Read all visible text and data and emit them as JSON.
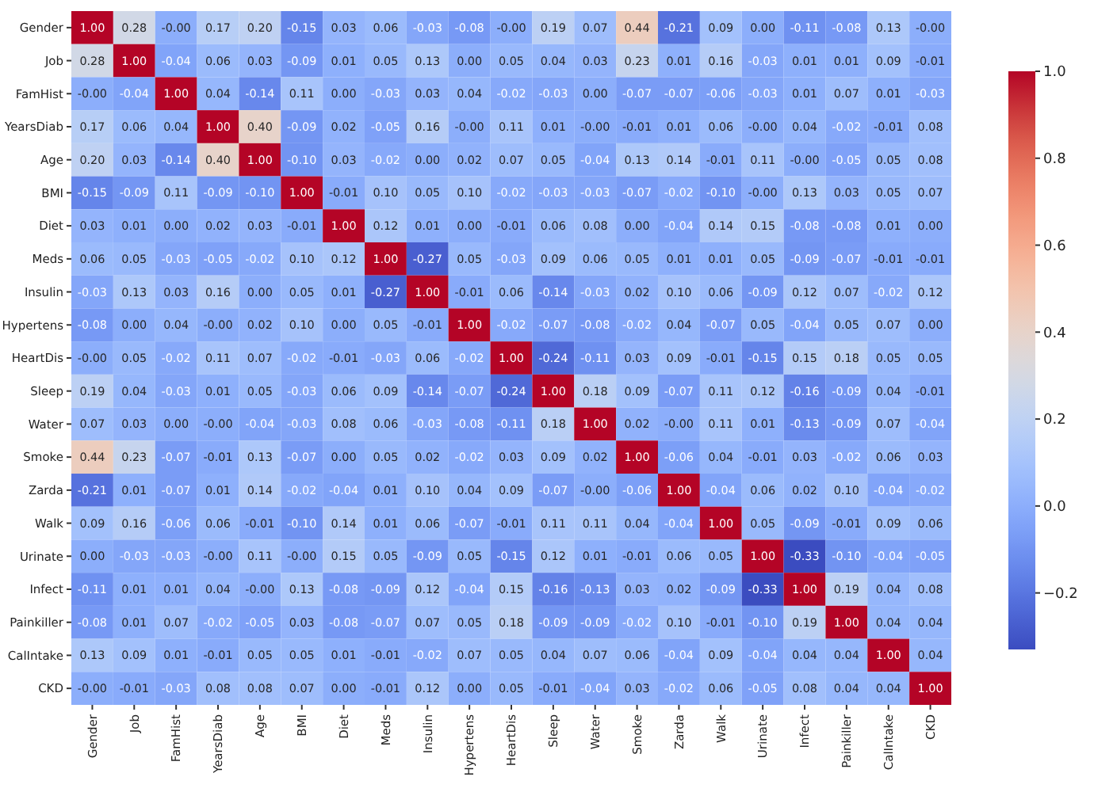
{
  "chart_data": {
    "type": "heatmap",
    "categories": [
      "Gender",
      "Job",
      "FamHist",
      "YearsDiab",
      "Age",
      "BMI",
      "Diet",
      "Meds",
      "Insulin",
      "Hypertens",
      "HeartDis",
      "Sleep",
      "Water",
      "Smoke",
      "Zarda",
      "Walk",
      "Urinate",
      "Infect",
      "Painkiller",
      "CalIntake",
      "CKD"
    ],
    "y_categories": [
      "Gender",
      "Job",
      "FamHist",
      "YearsDiab",
      "Age",
      "BMI",
      "Diet",
      "Meds",
      "Insulin",
      "Hypertens",
      "HeartDis",
      "Sleep",
      "Water",
      "Smoke",
      "Zarda",
      "Walk",
      "Urinate",
      "Infect",
      "Painkiller",
      "CalIntake",
      "CKD"
    ],
    "cells": [
      [
        1.0,
        0.28,
        0,
        0.17,
        0.2,
        -0.15,
        0.03,
        0.06,
        -0.03,
        -0.08,
        0,
        0.19,
        0.07,
        0.44,
        -0.21,
        0.09,
        0.0,
        -0.11,
        -0.08,
        0.13,
        0
      ],
      [
        0.28,
        1.0,
        -0.04,
        0.06,
        0.03,
        -0.09,
        0.01,
        0.05,
        0.13,
        0.0,
        0.05,
        0.04,
        0.03,
        0.23,
        0.01,
        0.16,
        -0.03,
        0.01,
        0.01,
        0.09,
        -0.01
      ],
      [
        0,
        -0.04,
        1.0,
        0.04,
        -0.14,
        0.11,
        0.0,
        -0.03,
        0.03,
        0.04,
        -0.02,
        -0.03,
        0.0,
        -0.07,
        -0.07,
        -0.06,
        -0.03,
        0.01,
        0.07,
        0.01,
        -0.03
      ],
      [
        0.17,
        0.06,
        0.04,
        1.0,
        0.4,
        -0.09,
        0.02,
        -0.05,
        0.16,
        0,
        0.11,
        0.01,
        0,
        -0.01,
        0.01,
        0.06,
        0,
        0.04,
        -0.02,
        -0.01,
        0.08
      ],
      [
        0.2,
        0.03,
        -0.14,
        0.4,
        1.0,
        -0.1,
        0.03,
        -0.02,
        0.0,
        0.02,
        0.07,
        0.05,
        -0.04,
        0.13,
        0.14,
        -0.01,
        0.11,
        0,
        -0.05,
        0.05,
        0.08
      ],
      [
        -0.15,
        -0.09,
        0.11,
        -0.09,
        -0.1,
        1.0,
        -0.01,
        0.1,
        0.05,
        0.1,
        -0.02,
        -0.03,
        -0.03,
        -0.07,
        -0.02,
        -0.1,
        0,
        0.13,
        0.03,
        0.05,
        0.07
      ],
      [
        0.03,
        0.01,
        0.0,
        0.02,
        0.03,
        -0.01,
        1.0,
        0.12,
        0.01,
        0.0,
        -0.01,
        0.06,
        0.08,
        0.0,
        -0.04,
        0.14,
        0.15,
        -0.08,
        -0.08,
        0.01,
        0.0
      ],
      [
        0.06,
        0.05,
        -0.03,
        -0.05,
        -0.02,
        0.1,
        0.12,
        1.0,
        -0.27,
        0.05,
        -0.03,
        0.09,
        0.06,
        0.05,
        0.01,
        0.01,
        0.05,
        -0.09,
        -0.07,
        -0.01,
        -0.01
      ],
      [
        -0.03,
        0.13,
        0.03,
        0.16,
        0.0,
        0.05,
        0.01,
        -0.27,
        1.0,
        -0.01,
        0.06,
        -0.14,
        -0.03,
        0.02,
        0.1,
        0.06,
        -0.09,
        0.12,
        0.07,
        -0.02,
        0.12
      ],
      [
        -0.08,
        0.0,
        0.04,
        0,
        0.02,
        0.1,
        0.0,
        0.05,
        -0.01,
        1.0,
        -0.02,
        -0.07,
        -0.08,
        -0.02,
        0.04,
        -0.07,
        0.05,
        -0.04,
        0.05,
        0.07,
        0.0
      ],
      [
        0,
        0.05,
        -0.02,
        0.11,
        0.07,
        -0.02,
        -0.01,
        -0.03,
        0.06,
        -0.02,
        1.0,
        -0.24,
        -0.11,
        0.03,
        0.09,
        -0.01,
        -0.15,
        0.15,
        0.18,
        0.05,
        0.05
      ],
      [
        0.19,
        0.04,
        -0.03,
        0.01,
        0.05,
        -0.03,
        0.06,
        0.09,
        -0.14,
        -0.07,
        -0.24,
        1.0,
        0.18,
        0.09,
        -0.07,
        0.11,
        0.12,
        -0.16,
        -0.09,
        0.04,
        -0.01
      ],
      [
        0.07,
        0.03,
        0.0,
        0,
        -0.04,
        -0.03,
        0.08,
        0.06,
        -0.03,
        -0.08,
        -0.11,
        0.18,
        1.0,
        0.02,
        0,
        0.11,
        0.01,
        -0.13,
        -0.09,
        0.07,
        -0.04
      ],
      [
        0.44,
        0.23,
        -0.07,
        -0.01,
        0.13,
        -0.07,
        0.0,
        0.05,
        0.02,
        -0.02,
        0.03,
        0.09,
        0.02,
        1.0,
        -0.06,
        0.04,
        -0.01,
        0.03,
        -0.02,
        0.06,
        0.03
      ],
      [
        -0.21,
        0.01,
        -0.07,
        0.01,
        0.14,
        -0.02,
        -0.04,
        0.01,
        0.1,
        0.04,
        0.09,
        -0.07,
        0,
        -0.06,
        1.0,
        -0.04,
        0.06,
        0.02,
        0.1,
        -0.04,
        -0.02
      ],
      [
        0.09,
        0.16,
        -0.06,
        0.06,
        -0.01,
        -0.1,
        0.14,
        0.01,
        0.06,
        -0.07,
        -0.01,
        0.11,
        0.11,
        0.04,
        -0.04,
        1.0,
        0.05,
        -0.09,
        -0.01,
        0.09,
        0.06
      ],
      [
        0.0,
        -0.03,
        -0.03,
        0,
        0.11,
        0,
        0.15,
        0.05,
        -0.09,
        0.05,
        -0.15,
        0.12,
        0.01,
        -0.01,
        0.06,
        0.05,
        1.0,
        -0.33,
        -0.1,
        -0.04,
        -0.05
      ],
      [
        -0.11,
        0.01,
        0.01,
        0.04,
        0,
        0.13,
        -0.08,
        -0.09,
        0.12,
        -0.04,
        0.15,
        -0.16,
        -0.13,
        0.03,
        0.02,
        -0.09,
        -0.33,
        1.0,
        0.19,
        0.04,
        0.08
      ],
      [
        -0.08,
        0.01,
        0.07,
        -0.02,
        -0.05,
        0.03,
        -0.08,
        -0.07,
        0.07,
        0.05,
        0.18,
        -0.09,
        -0.09,
        -0.02,
        0.1,
        -0.01,
        -0.1,
        0.19,
        1.0,
        0.04,
        0.04
      ],
      [
        0.13,
        0.09,
        0.01,
        -0.01,
        0.05,
        0.05,
        0.01,
        -0.01,
        -0.02,
        0.07,
        0.05,
        0.04,
        0.07,
        0.06,
        -0.04,
        0.09,
        -0.04,
        0.04,
        0.04,
        1.0,
        0.04
      ],
      [
        0,
        -0.01,
        -0.03,
        0.08,
        0.08,
        0.07,
        0.0,
        -0.01,
        0.12,
        0.0,
        0.05,
        -0.01,
        -0.04,
        0.03,
        -0.02,
        0.06,
        -0.05,
        0.08,
        0.04,
        0.04,
        1.0
      ]
    ],
    "cell_labels": [
      [
        "1.00",
        "0.28",
        "-0.00",
        "0.17",
        "0.20",
        "-0.15",
        "0.03",
        "0.06",
        "-0.03",
        "-0.08",
        "-0.00",
        "0.19",
        "0.07",
        "0.44",
        "-0.21",
        "0.09",
        "0.00",
        "-0.11",
        "-0.08",
        "0.13",
        "-0.00"
      ],
      [
        "0.28",
        "1.00",
        "-0.04",
        "0.06",
        "0.03",
        "-0.09",
        "0.01",
        "0.05",
        "0.13",
        "0.00",
        "0.05",
        "0.04",
        "0.03",
        "0.23",
        "0.01",
        "0.16",
        "-0.03",
        "0.01",
        "0.01",
        "0.09",
        "-0.01"
      ],
      [
        "-0.00",
        "-0.04",
        "1.00",
        "0.04",
        "-0.14",
        "0.11",
        "0.00",
        "-0.03",
        "0.03",
        "0.04",
        "-0.02",
        "-0.03",
        "0.00",
        "-0.07",
        "-0.07",
        "-0.06",
        "-0.03",
        "0.01",
        "0.07",
        "0.01",
        "-0.03"
      ],
      [
        "0.17",
        "0.06",
        "0.04",
        "1.00",
        "0.40",
        "-0.09",
        "0.02",
        "-0.05",
        "0.16",
        "-0.00",
        "0.11",
        "0.01",
        "-0.00",
        "-0.01",
        "0.01",
        "0.06",
        "-0.00",
        "0.04",
        "-0.02",
        "-0.01",
        "0.08"
      ],
      [
        "0.20",
        "0.03",
        "-0.14",
        "0.40",
        "1.00",
        "-0.10",
        "0.03",
        "-0.02",
        "0.00",
        "0.02",
        "0.07",
        "0.05",
        "-0.04",
        "0.13",
        "0.14",
        "-0.01",
        "0.11",
        "-0.00",
        "-0.05",
        "0.05",
        "0.08"
      ],
      [
        "-0.15",
        "-0.09",
        "0.11",
        "-0.09",
        "-0.10",
        "1.00",
        "-0.01",
        "0.10",
        "0.05",
        "0.10",
        "-0.02",
        "-0.03",
        "-0.03",
        "-0.07",
        "-0.02",
        "-0.10",
        "-0.00",
        "0.13",
        "0.03",
        "0.05",
        "0.07"
      ],
      [
        "0.03",
        "0.01",
        "0.00",
        "0.02",
        "0.03",
        "-0.01",
        "1.00",
        "0.12",
        "0.01",
        "0.00",
        "-0.01",
        "0.06",
        "0.08",
        "0.00",
        "-0.04",
        "0.14",
        "0.15",
        "-0.08",
        "-0.08",
        "0.01",
        "0.00"
      ],
      [
        "0.06",
        "0.05",
        "-0.03",
        "-0.05",
        "-0.02",
        "0.10",
        "0.12",
        "1.00",
        "-0.27",
        "0.05",
        "-0.03",
        "0.09",
        "0.06",
        "0.05",
        "0.01",
        "0.01",
        "0.05",
        "-0.09",
        "-0.07",
        "-0.01",
        "-0.01"
      ],
      [
        "-0.03",
        "0.13",
        "0.03",
        "0.16",
        "0.00",
        "0.05",
        "0.01",
        "-0.27",
        "1.00",
        "-0.01",
        "0.06",
        "-0.14",
        "-0.03",
        "0.02",
        "0.10",
        "0.06",
        "-0.09",
        "0.12",
        "0.07",
        "-0.02",
        "0.12"
      ],
      [
        "-0.08",
        "0.00",
        "0.04",
        "-0.00",
        "0.02",
        "0.10",
        "0.00",
        "0.05",
        "-0.01",
        "1.00",
        "-0.02",
        "-0.07",
        "-0.08",
        "-0.02",
        "0.04",
        "-0.07",
        "0.05",
        "-0.04",
        "0.05",
        "0.07",
        "0.00"
      ],
      [
        "-0.00",
        "0.05",
        "-0.02",
        "0.11",
        "0.07",
        "-0.02",
        "-0.01",
        "-0.03",
        "0.06",
        "-0.02",
        "1.00",
        "-0.24",
        "-0.11",
        "0.03",
        "0.09",
        "-0.01",
        "-0.15",
        "0.15",
        "0.18",
        "0.05",
        "0.05"
      ],
      [
        "0.19",
        "0.04",
        "-0.03",
        "0.01",
        "0.05",
        "-0.03",
        "0.06",
        "0.09",
        "-0.14",
        "-0.07",
        "-0.24",
        "1.00",
        "0.18",
        "0.09",
        "-0.07",
        "0.11",
        "0.12",
        "-0.16",
        "-0.09",
        "0.04",
        "-0.01"
      ],
      [
        "0.07",
        "0.03",
        "0.00",
        "-0.00",
        "-0.04",
        "-0.03",
        "0.08",
        "0.06",
        "-0.03",
        "-0.08",
        "-0.11",
        "0.18",
        "1.00",
        "0.02",
        "-0.00",
        "0.11",
        "0.01",
        "-0.13",
        "-0.09",
        "0.07",
        "-0.04"
      ],
      [
        "0.44",
        "0.23",
        "-0.07",
        "-0.01",
        "0.13",
        "-0.07",
        "0.00",
        "0.05",
        "0.02",
        "-0.02",
        "0.03",
        "0.09",
        "0.02",
        "1.00",
        "-0.06",
        "0.04",
        "-0.01",
        "0.03",
        "-0.02",
        "0.06",
        "0.03"
      ],
      [
        "-0.21",
        "0.01",
        "-0.07",
        "0.01",
        "0.14",
        "-0.02",
        "-0.04",
        "0.01",
        "0.10",
        "0.04",
        "0.09",
        "-0.07",
        "-0.00",
        "-0.06",
        "1.00",
        "-0.04",
        "0.06",
        "0.02",
        "0.10",
        "-0.04",
        "-0.02"
      ],
      [
        "0.09",
        "0.16",
        "-0.06",
        "0.06",
        "-0.01",
        "-0.10",
        "0.14",
        "0.01",
        "0.06",
        "-0.07",
        "-0.01",
        "0.11",
        "0.11",
        "0.04",
        "-0.04",
        "1.00",
        "0.05",
        "-0.09",
        "-0.01",
        "0.09",
        "0.06"
      ],
      [
        "0.00",
        "-0.03",
        "-0.03",
        "-0.00",
        "0.11",
        "-0.00",
        "0.15",
        "0.05",
        "-0.09",
        "0.05",
        "-0.15",
        "0.12",
        "0.01",
        "-0.01",
        "0.06",
        "0.05",
        "1.00",
        "-0.33",
        "-0.10",
        "-0.04",
        "-0.05"
      ],
      [
        "-0.11",
        "0.01",
        "0.01",
        "0.04",
        "-0.00",
        "0.13",
        "-0.08",
        "-0.09",
        "0.12",
        "-0.04",
        "0.15",
        "-0.16",
        "-0.13",
        "0.03",
        "0.02",
        "-0.09",
        "-0.33",
        "1.00",
        "0.19",
        "0.04",
        "0.08"
      ],
      [
        "-0.08",
        "0.01",
        "0.07",
        "-0.02",
        "-0.05",
        "0.03",
        "-0.08",
        "-0.07",
        "0.07",
        "0.05",
        "0.18",
        "-0.09",
        "-0.09",
        "-0.02",
        "0.10",
        "-0.01",
        "-0.10",
        "0.19",
        "1.00",
        "0.04",
        "0.04"
      ],
      [
        "0.13",
        "0.09",
        "0.01",
        "-0.01",
        "0.05",
        "0.05",
        "0.01",
        "-0.01",
        "-0.02",
        "0.07",
        "0.05",
        "0.04",
        "0.07",
        "0.06",
        "-0.04",
        "0.09",
        "-0.04",
        "0.04",
        "0.04",
        "1.00",
        "0.04"
      ],
      [
        "-0.00",
        "-0.01",
        "-0.03",
        "0.08",
        "0.08",
        "0.07",
        "0.00",
        "-0.01",
        "0.12",
        "0.00",
        "0.05",
        "-0.01",
        "-0.04",
        "0.03",
        "-0.02",
        "0.06",
        "-0.05",
        "0.08",
        "0.04",
        "0.04",
        "1.00"
      ]
    ],
    "clim": [
      -0.33,
      1.0
    ],
    "cticks": [
      {
        "value": -0.2,
        "label": "−0.2"
      },
      {
        "value": 0,
        "label": "0.0"
      },
      {
        "value": 0.2,
        "label": "0.2"
      },
      {
        "value": 0.4,
        "label": "0.4"
      },
      {
        "value": 0.6,
        "label": "0.6"
      },
      {
        "value": 0.8,
        "label": "0.8"
      },
      {
        "value": 1.0,
        "label": "1.0"
      }
    ]
  }
}
